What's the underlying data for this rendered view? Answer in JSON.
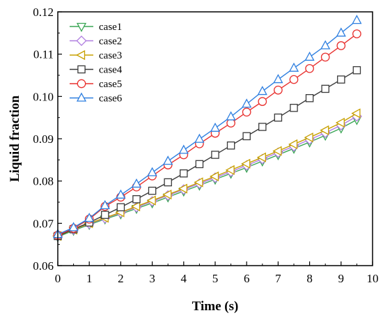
{
  "chart_data": {
    "type": "line",
    "title": "",
    "xlabel": "Time (s)",
    "ylabel": "Liquid fraction",
    "xlim": [
      0,
      10
    ],
    "ylim": [
      0.06,
      0.12
    ],
    "xticks": [
      "0",
      "1",
      "2",
      "3",
      "4",
      "5",
      "6",
      "7",
      "8",
      "9",
      "10"
    ],
    "yticks": [
      "0.06",
      "0.07",
      "0.08",
      "0.09",
      "0.10",
      "0.11",
      "0.12"
    ],
    "grid": false,
    "legend_position": "top-left",
    "x": [
      0,
      0.5,
      1,
      1.5,
      2,
      2.5,
      3,
      3.5,
      4,
      4.5,
      5,
      5.5,
      6,
      6.5,
      7,
      7.5,
      8,
      8.5,
      9,
      9.5
    ],
    "series": [
      {
        "name": "case1",
        "color": "#3aa655",
        "marker": "triangle-down",
        "values": [
          0.0668,
          0.0683,
          0.0697,
          0.071,
          0.0722,
          0.0735,
          0.0748,
          0.0762,
          0.0776,
          0.079,
          0.0804,
          0.0818,
          0.0832,
          0.0847,
          0.0862,
          0.0877,
          0.0892,
          0.0908,
          0.0925,
          0.0945
        ]
      },
      {
        "name": "case2",
        "color": "#b07fe0",
        "marker": "diamond",
        "values": [
          0.067,
          0.0685,
          0.0699,
          0.0712,
          0.0725,
          0.0738,
          0.0752,
          0.0766,
          0.078,
          0.0794,
          0.0808,
          0.0822,
          0.0837,
          0.0852,
          0.0867,
          0.0882,
          0.0898,
          0.0914,
          0.0932,
          0.0953
        ]
      },
      {
        "name": "case3",
        "color": "#c8a000",
        "marker": "triangle-left",
        "values": [
          0.067,
          0.0685,
          0.07,
          0.0713,
          0.0726,
          0.074,
          0.0754,
          0.0768,
          0.0782,
          0.0797,
          0.0811,
          0.0826,
          0.0841,
          0.0856,
          0.0871,
          0.0887,
          0.0903,
          0.092,
          0.0938,
          0.096
        ]
      },
      {
        "name": "case4",
        "color": "#3a3a3a",
        "marker": "square",
        "values": [
          0.067,
          0.0686,
          0.0702,
          0.072,
          0.0738,
          0.0757,
          0.0777,
          0.0797,
          0.0818,
          0.084,
          0.0862,
          0.0884,
          0.0906,
          0.0928,
          0.095,
          0.0973,
          0.0996,
          0.1018,
          0.104,
          0.1062
        ]
      },
      {
        "name": "case5",
        "color": "#e8312f",
        "marker": "circle",
        "values": [
          0.0672,
          0.0688,
          0.071,
          0.074,
          0.0762,
          0.0786,
          0.0812,
          0.0838,
          0.0862,
          0.0888,
          0.0913,
          0.0937,
          0.0963,
          0.0988,
          0.1015,
          0.104,
          0.1066,
          0.1093,
          0.112,
          0.1148
        ]
      },
      {
        "name": "case6",
        "color": "#2e7fe0",
        "marker": "triangle-up",
        "values": [
          0.0674,
          0.069,
          0.0712,
          0.0742,
          0.0767,
          0.0793,
          0.082,
          0.0847,
          0.0873,
          0.0899,
          0.0925,
          0.0952,
          0.0982,
          0.1012,
          0.104,
          0.1067,
          0.1093,
          0.112,
          0.115,
          0.118
        ]
      }
    ]
  }
}
